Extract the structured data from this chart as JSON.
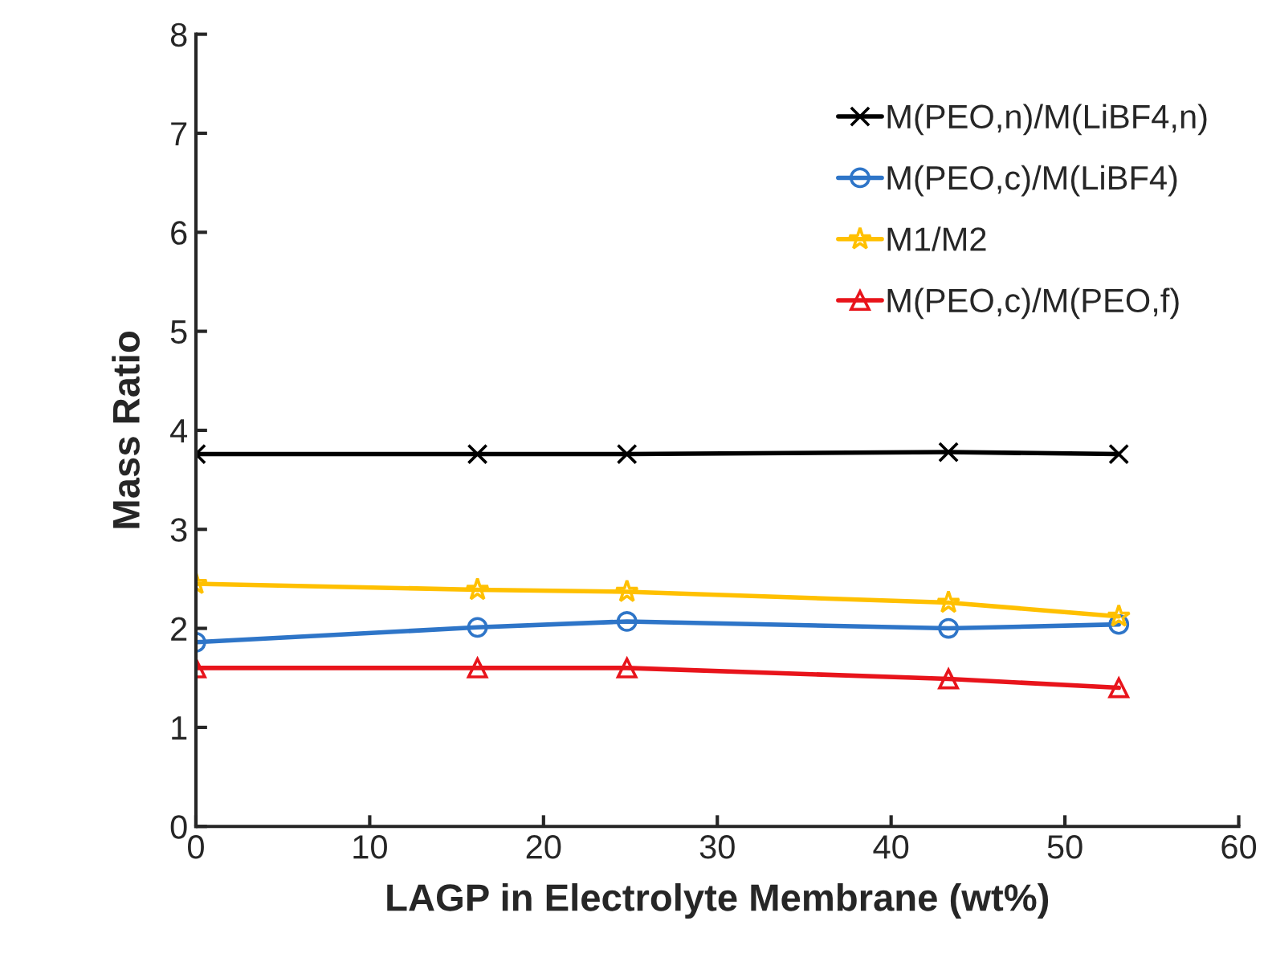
{
  "chart_data": {
    "type": "line",
    "xlabel": "LAGP in Electrolyte Membrane (wt%)",
    "ylabel": "Mass Ratio",
    "x": [
      0,
      16.2,
      24.8,
      43.3,
      53.1
    ],
    "series": [
      {
        "name": "M(PEO,n)/M(LiBF4,n)",
        "color": "#000000",
        "marker": "cross",
        "values": [
          3.76,
          3.76,
          3.76,
          3.78,
          3.76
        ]
      },
      {
        "name": "M(PEO,c)/M(LiBF4)",
        "color": "#2e75c8",
        "marker": "circle",
        "values": [
          1.86,
          2.01,
          2.07,
          2.0,
          2.04
        ]
      },
      {
        "name": "M1/M2",
        "color": "#ffc000",
        "marker": "star",
        "values": [
          2.45,
          2.39,
          2.37,
          2.26,
          2.12
        ]
      },
      {
        "name": "M(PEO,c)/M(PEO,f)",
        "color": "#e8141b",
        "marker": "triangle",
        "values": [
          1.6,
          1.6,
          1.6,
          1.49,
          1.4
        ]
      }
    ],
    "xlim": [
      0,
      60
    ],
    "xticks": [
      0,
      10,
      20,
      30,
      40,
      50,
      60
    ],
    "ylim": [
      0,
      8
    ],
    "yticks": [
      0,
      1,
      2,
      3,
      4,
      5,
      6,
      7,
      8
    ],
    "grid": false,
    "legend": "top right"
  }
}
